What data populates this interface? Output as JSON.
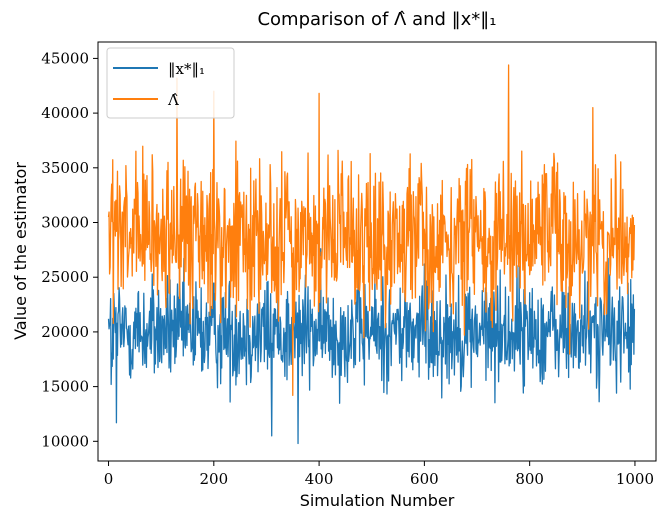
{
  "chart_data": {
    "type": "line",
    "title": "Comparison of Λ̂ and ‖x*‖₁",
    "xlabel": "Simulation Number",
    "ylabel": "Value of the estimator",
    "xlim": [
      -20,
      1040
    ],
    "ylim": [
      8200,
      46500
    ],
    "x_ticks": [
      0,
      200,
      400,
      600,
      800,
      1000
    ],
    "y_ticks": [
      10000,
      15000,
      20000,
      25000,
      30000,
      35000,
      40000,
      45000
    ],
    "x_tick_labels": [
      "0",
      "200",
      "400",
      "600",
      "800",
      "1000"
    ],
    "y_tick_labels": [
      "10000",
      "15000",
      "20000",
      "25000",
      "30000",
      "35000",
      "40000",
      "45000"
    ],
    "legend_position": "top-left",
    "grid": false,
    "n_points": 1000,
    "series": [
      {
        "name": "‖x*‖₁",
        "color": "#1f77b4",
        "mean": 20000,
        "typical_range": [
          15000,
          25000
        ],
        "min": 9800,
        "max": 29000,
        "notable_points": [
          [
            0,
            21200
          ],
          [
            5,
            15200
          ],
          [
            15,
            11700
          ],
          [
            310,
            10500
          ],
          [
            360,
            9800
          ],
          [
            500,
            22300
          ],
          [
            600,
            26200
          ],
          [
            780,
            26000
          ]
        ]
      },
      {
        "name": "Λ̂",
        "color": "#ff7f0e",
        "mean": 28500,
        "typical_range": [
          22000,
          36000
        ],
        "min": 14000,
        "max": 44400,
        "notable_points": [
          [
            0,
            30500
          ],
          [
            130,
            43200
          ],
          [
            200,
            42000
          ],
          [
            350,
            14200
          ],
          [
            400,
            41800
          ],
          [
            760,
            44400
          ],
          [
            920,
            40500
          ],
          [
            1000,
            24900
          ]
        ]
      }
    ]
  }
}
